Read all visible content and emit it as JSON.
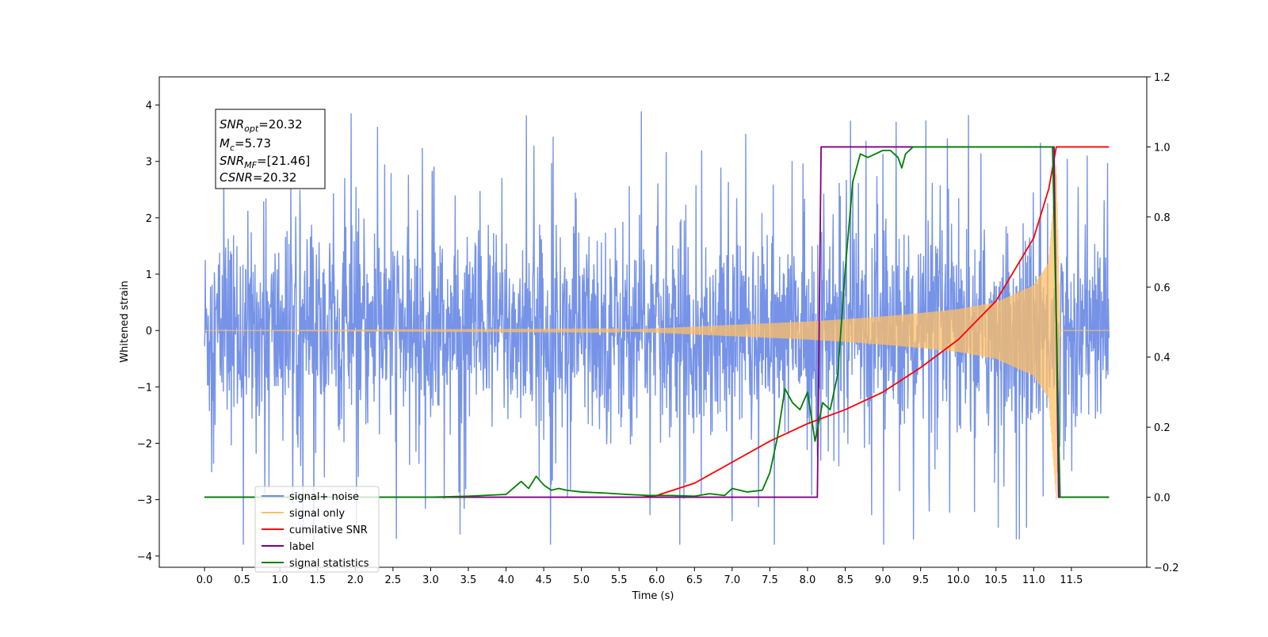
{
  "chart_data": {
    "type": "line",
    "title": "",
    "xlabel": "Time (s)",
    "ylabel": "Whitened strain",
    "ylabel_right": "",
    "xlim": [
      -0.6,
      12.5
    ],
    "ylim": [
      -4.2,
      4.5
    ],
    "ylim_right": [
      -0.2,
      1.2
    ],
    "x_ticks": [
      "0.0",
      "0.5",
      "1.0",
      "1.5",
      "2.0",
      "2.5",
      "3.0",
      "3.5",
      "4.0",
      "4.5",
      "5.0",
      "5.5",
      "6.0",
      "6.5",
      "7.0",
      "7.5",
      "8.0",
      "8.5",
      "9.0",
      "9.5",
      "10.0",
      "10.5",
      "11.0",
      "11.5"
    ],
    "y_ticks_left": [
      "−4",
      "−3",
      "−2",
      "−1",
      "0",
      "1",
      "2",
      "3",
      "4"
    ],
    "y_ticks_right": [
      "−0.2",
      "0.0",
      "0.2",
      "0.4",
      "0.6",
      "0.8",
      "1.0",
      "1.2"
    ],
    "grid": false,
    "legend_position": "bottom-left",
    "annotation": {
      "lines": [
        {
          "base": "SNR",
          "sub": "opt",
          "rest": "=20.32"
        },
        {
          "base": "M",
          "sub": "c",
          "rest": "=5.73"
        },
        {
          "base": "SNR",
          "sub": "MF",
          "rest": "=[21.46]"
        },
        {
          "base": "CSNR",
          "sub": "",
          "rest": "=20.32"
        }
      ]
    },
    "series": [
      {
        "name": "signal+ noise",
        "axis": "left",
        "color": "#6f8de6",
        "note": "noise band roughly within [-2.5, 2.5] with spikes up to about 4.1 and down to -3.8 over t in [0, 12]"
      },
      {
        "name": "signal only",
        "axis": "left",
        "color": "#ffbf66",
        "envelope_t": [
          0.0,
          5.5,
          6.0,
          6.5,
          7.0,
          7.5,
          8.0,
          8.5,
          9.0,
          9.5,
          10.0,
          10.5,
          11.0,
          11.2,
          11.3,
          11.35,
          12.0
        ],
        "envelope_a": [
          0.0,
          0.01,
          0.04,
          0.07,
          0.1,
          0.13,
          0.16,
          0.2,
          0.25,
          0.31,
          0.38,
          0.5,
          0.8,
          1.2,
          3.0,
          0.0,
          0.0
        ]
      },
      {
        "name": "cumilative SNR",
        "axis": "right",
        "color": "#ff0000",
        "x": [
          5.8,
          6.0,
          6.5,
          7.0,
          7.5,
          8.0,
          8.5,
          9.0,
          9.5,
          10.0,
          10.5,
          11.0,
          11.2,
          11.3,
          11.35,
          12.0
        ],
        "y": [
          0.0,
          0.005,
          0.04,
          0.1,
          0.16,
          0.21,
          0.25,
          0.3,
          0.37,
          0.45,
          0.56,
          0.74,
          0.88,
          1.0,
          1.0,
          1.0
        ]
      },
      {
        "name": "label",
        "axis": "right",
        "color": "#800080",
        "x": [
          0.0,
          8.13,
          8.18,
          11.27,
          11.33,
          12.0
        ],
        "y": [
          0.0,
          0.0,
          1.0,
          1.0,
          0.0,
          0.0
        ]
      },
      {
        "name": "signal statistics",
        "axis": "right",
        "color": "#008000",
        "x": [
          0.0,
          3.0,
          3.5,
          4.0,
          4.2,
          4.3,
          4.4,
          4.5,
          4.6,
          4.7,
          4.8,
          5.0,
          5.3,
          5.6,
          5.9,
          6.2,
          6.5,
          6.7,
          6.9,
          7.0,
          7.1,
          7.2,
          7.4,
          7.5,
          7.6,
          7.7,
          7.8,
          7.9,
          8.0,
          8.1,
          8.2,
          8.3,
          8.4,
          8.5,
          8.6,
          8.7,
          8.8,
          8.9,
          9.0,
          9.1,
          9.2,
          9.25,
          9.3,
          9.4,
          9.5,
          10.0,
          11.0,
          11.25,
          11.3,
          11.35,
          12.0
        ],
        "y": [
          0.0,
          0.0,
          0.003,
          0.008,
          0.045,
          0.025,
          0.06,
          0.035,
          0.02,
          0.025,
          0.02,
          0.015,
          0.012,
          0.008,
          0.005,
          0.005,
          0.003,
          0.01,
          0.005,
          0.025,
          0.02,
          0.015,
          0.02,
          0.07,
          0.17,
          0.31,
          0.27,
          0.25,
          0.3,
          0.16,
          0.27,
          0.25,
          0.35,
          0.65,
          0.9,
          0.98,
          0.97,
          0.98,
          0.99,
          0.99,
          0.97,
          0.94,
          0.98,
          1.0,
          1.0,
          1.0,
          1.0,
          1.0,
          0.5,
          0.0,
          0.0
        ]
      }
    ],
    "legend_entries": [
      {
        "text": "signal+ noise",
        "color": "#6f8de6"
      },
      {
        "text": "signal only",
        "color": "#ffbf66"
      },
      {
        "text": "cumilative SNR",
        "color": "#ff0000"
      },
      {
        "text": "label",
        "color": "#800080"
      },
      {
        "text": "signal statistics",
        "color": "#008000"
      }
    ]
  }
}
